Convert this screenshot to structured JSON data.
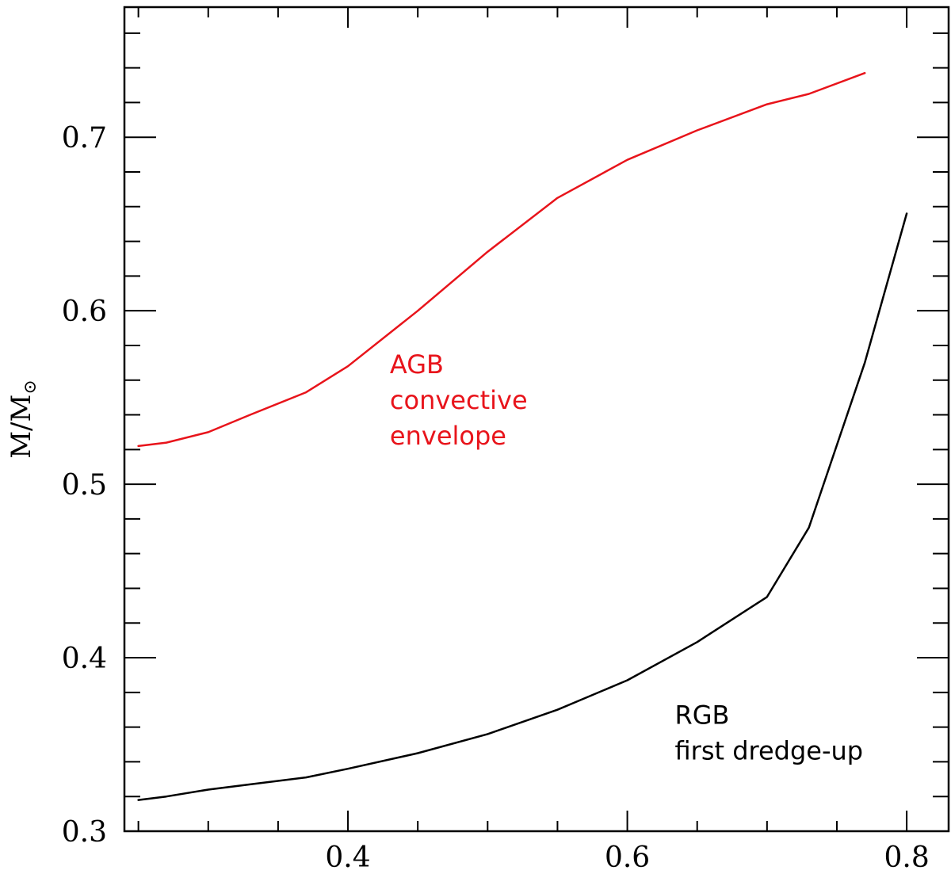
{
  "chart_data": {
    "type": "line",
    "title": "",
    "xlabel": "",
    "ylabel": {
      "base": "M/M",
      "subscript": "⊙"
    },
    "xlim": [
      0.24,
      0.83
    ],
    "ylim": [
      0.3,
      0.775
    ],
    "x_major_ticks": [
      0.4,
      0.6,
      0.8
    ],
    "x_major_tick_labels": [
      "0.4",
      "0.6",
      "0.8"
    ],
    "x_minor_step": 0.05,
    "y_major_ticks": [
      0.3,
      0.4,
      0.5,
      0.6,
      0.7
    ],
    "y_major_tick_labels": [
      "0.3",
      "0.4",
      "0.5",
      "0.6",
      "0.7"
    ],
    "y_minor_step": 0.02,
    "grid": false,
    "legend": "none",
    "series": [
      {
        "color": "#e8141b",
        "x": [
          0.25,
          0.27,
          0.3,
          0.33,
          0.37,
          0.4,
          0.45,
          0.5,
          0.55,
          0.6,
          0.65,
          0.7,
          0.73,
          0.77
        ],
        "y": [
          0.522,
          0.524,
          0.53,
          0.54,
          0.553,
          0.568,
          0.6,
          0.634,
          0.665,
          0.687,
          0.704,
          0.719,
          0.725,
          0.737
        ]
      },
      {
        "color": "#000000",
        "x": [
          0.25,
          0.27,
          0.3,
          0.33,
          0.37,
          0.4,
          0.45,
          0.5,
          0.55,
          0.6,
          0.65,
          0.7,
          0.73,
          0.77,
          0.8
        ],
        "y": [
          0.318,
          0.32,
          0.324,
          0.327,
          0.331,
          0.336,
          0.345,
          0.356,
          0.37,
          0.387,
          0.409,
          0.435,
          0.475,
          0.57,
          0.656
        ]
      }
    ],
    "annotations": [
      {
        "lines": [
          "AGB",
          "convective",
          "envelope"
        ],
        "color": "#e8141b",
        "x": 0.43,
        "y": 0.564
      },
      {
        "lines": [
          "RGB",
          "first dredge-up"
        ],
        "color": "#000000",
        "x": 0.634,
        "y": 0.362
      }
    ]
  }
}
